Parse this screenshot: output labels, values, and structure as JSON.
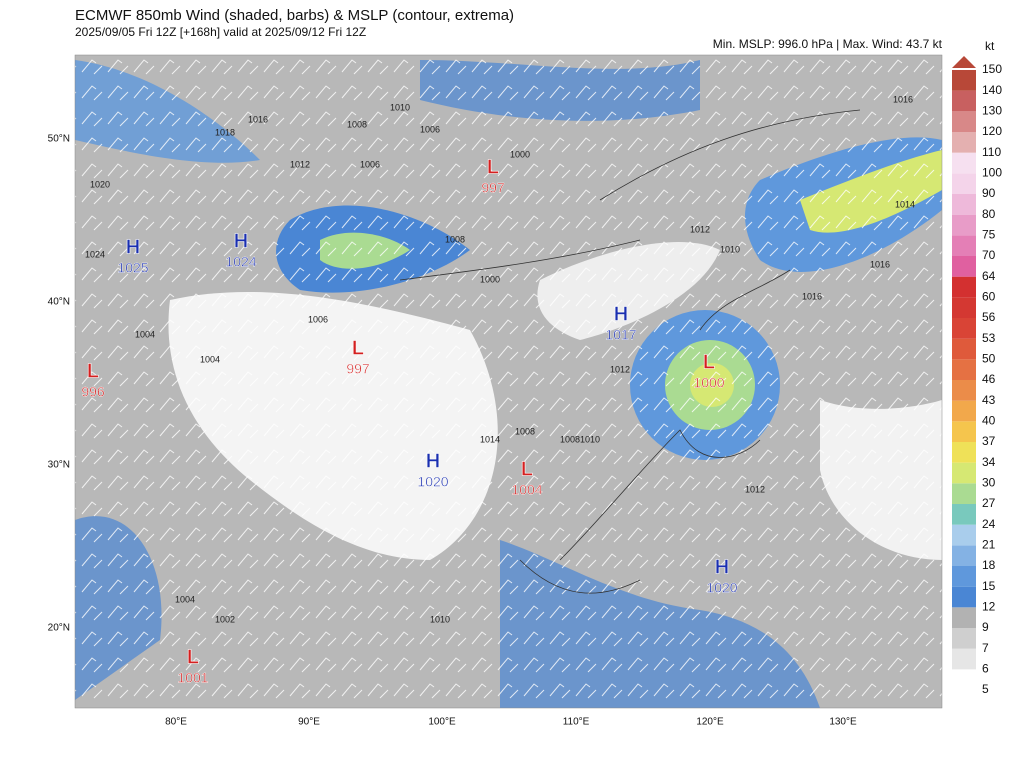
{
  "header": {
    "title": "ECMWF 850mb Wind (shaded, barbs) & MSLP (contour, extrema)",
    "subtitle": "2025/09/05 Fri 12Z [+168h] valid at 2025/09/12 Fri 12Z",
    "stats": "Min. MSLP: 996.0 hPa | Max. Wind: 43.7 kt"
  },
  "axes": {
    "lat_labels": [
      "50°N",
      "40°N",
      "30°N",
      "20°N"
    ],
    "lon_labels": [
      "80°E",
      "90°E",
      "100°E",
      "110°E",
      "120°E",
      "130°E"
    ]
  },
  "colorbar": {
    "unit": "kt",
    "levels": [
      5,
      6,
      7,
      9,
      12,
      15,
      18,
      21,
      24,
      27,
      30,
      34,
      37,
      40,
      43,
      46,
      50,
      53,
      56,
      60,
      64,
      70,
      75,
      80,
      90,
      100,
      110,
      120,
      130,
      140,
      150
    ],
    "colors": [
      "#ffffff",
      "#e6e6e6",
      "#cfcfcf",
      "#b2b2b2",
      "#4a86d4",
      "#5f98dc",
      "#84b2e4",
      "#a9cdec",
      "#79c9bd",
      "#aadb92",
      "#d6e873",
      "#efe158",
      "#f5c54d",
      "#f2a84b",
      "#eb8c49",
      "#e57143",
      "#df5a3b",
      "#d94436",
      "#d43832",
      "#d33030",
      "#e060a0",
      "#e47fb6",
      "#e89cc8",
      "#eeb9da",
      "#f4d4ea",
      "#f6e0f0",
      "#e4b0b0",
      "#d88888",
      "#c86060",
      "#b84838"
    ]
  },
  "centers": [
    {
      "type": "H",
      "value": 1025
    },
    {
      "type": "H",
      "value": 1024
    },
    {
      "type": "L",
      "value": 997
    },
    {
      "type": "L",
      "value": 996
    },
    {
      "type": "L",
      "value": 997
    },
    {
      "type": "H",
      "value": 1017
    },
    {
      "type": "L",
      "value": 1000
    },
    {
      "type": "H",
      "value": 1020
    },
    {
      "type": "L",
      "value": 1004
    },
    {
      "type": "H",
      "value": 1020
    },
    {
      "type": "L",
      "value": 1001
    }
  ],
  "contour_labels": [
    "1024",
    "1020",
    "1016",
    "1018",
    "1008",
    "1010",
    "1006",
    "1012",
    "1008",
    "1006",
    "1000",
    "1000",
    "1012",
    "1010",
    "1014",
    "1016",
    "1016",
    "1004",
    "1004",
    "1008",
    "1010",
    "1012",
    "1014",
    "1012",
    "1004",
    "1002",
    "1010",
    "1008",
    "1006",
    "1016"
  ]
}
